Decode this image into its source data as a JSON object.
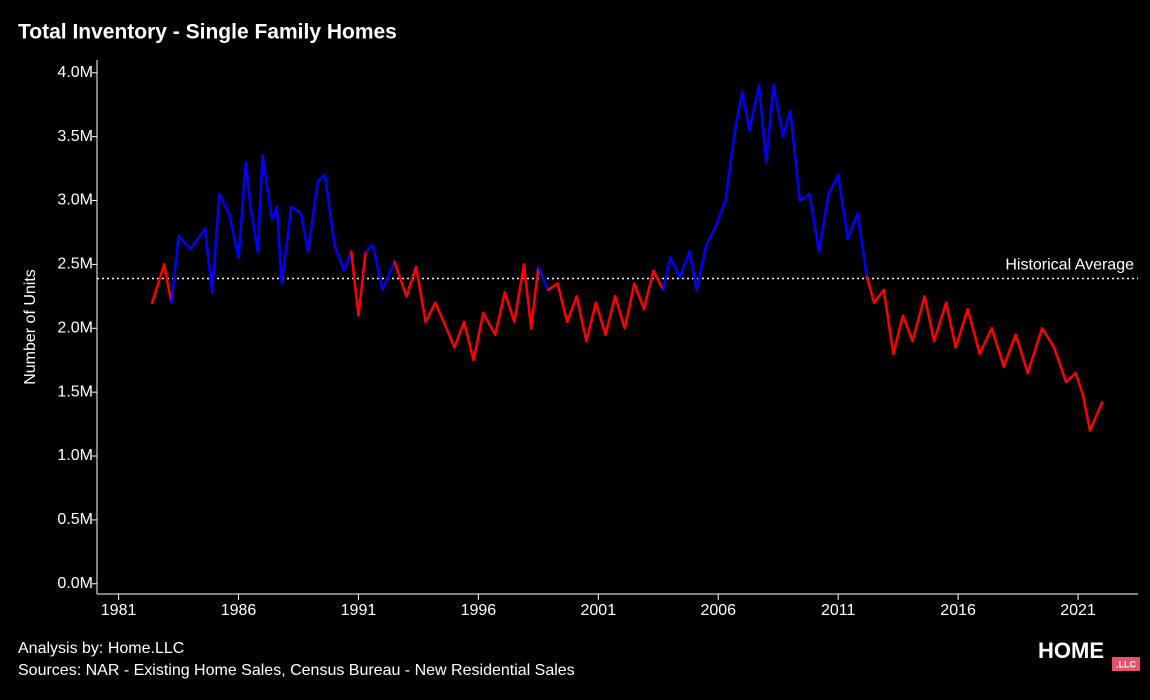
{
  "chart_data": {
    "type": "line",
    "title": "Total Inventory - Single Family Homes",
    "y_label": "Number of Units",
    "footer": [
      "Analysis by: Home.LLC",
      "Sources: NAR - Existing Home Sales, Census Bureau - New Residential Sales"
    ],
    "logo": {
      "main": "HOME",
      "badge": ".LLC"
    },
    "reference_line": {
      "label": "Historical Average",
      "value": 2390000
    },
    "above_color": "#0000ff",
    "below_color": "#ff0000",
    "xlim": [
      1980.1,
      2023.5
    ],
    "ylim": [
      -80000,
      4100000
    ],
    "xticks": [
      1981,
      1986,
      1991,
      1996,
      2001,
      2006,
      2011,
      2016,
      2021
    ],
    "yticks": [
      {
        "value": 0,
        "label": "0.0M"
      },
      {
        "value": 500000,
        "label": "0.5M"
      },
      {
        "value": 1000000,
        "label": "1.0M"
      },
      {
        "value": 1500000,
        "label": "1.5M"
      },
      {
        "value": 2000000,
        "label": "2.0M"
      },
      {
        "value": 2500000,
        "label": "2.5M"
      },
      {
        "value": 3000000,
        "label": "3.0M"
      },
      {
        "value": 3500000,
        "label": "3.5M"
      },
      {
        "value": 4000000,
        "label": "4.0M"
      }
    ],
    "x": [
      1982.4,
      1982.9,
      1983.2,
      1983.5,
      1984.0,
      1984.6,
      1984.9,
      1985.2,
      1985.6,
      1986.0,
      1986.3,
      1986.5,
      1986.8,
      1987.0,
      1987.4,
      1987.6,
      1987.8,
      1988.2,
      1988.6,
      1988.9,
      1989.3,
      1989.6,
      1990.0,
      1990.4,
      1990.7,
      1991.0,
      1991.3,
      1991.6,
      1992.0,
      1992.5,
      1993.0,
      1993.4,
      1993.8,
      1994.2,
      1994.6,
      1995.0,
      1995.4,
      1995.8,
      1996.2,
      1996.7,
      1997.1,
      1997.5,
      1997.9,
      1998.2,
      1998.5,
      1998.9,
      1999.3,
      1999.7,
      2000.1,
      2000.5,
      2000.9,
      2001.3,
      2001.7,
      2002.1,
      2002.5,
      2002.9,
      2003.3,
      2003.7,
      2004.0,
      2004.4,
      2004.8,
      2005.1,
      2005.5,
      2005.9,
      2006.3,
      2006.7,
      2007.0,
      2007.3,
      2007.7,
      2008.0,
      2008.3,
      2008.7,
      2009.0,
      2009.4,
      2009.8,
      2010.2,
      2010.6,
      2011.0,
      2011.4,
      2011.8,
      2012.2,
      2012.5,
      2012.9,
      2013.3,
      2013.7,
      2014.1,
      2014.6,
      2015.0,
      2015.5,
      2015.9,
      2016.4,
      2016.9,
      2017.4,
      2017.9,
      2018.4,
      2018.9,
      2019.5,
      2020.0,
      2020.5,
      2020.9,
      2021.2,
      2021.5,
      2022.0
    ],
    "values": [
      2200000,
      2500000,
      2200000,
      2720000,
      2620000,
      2780000,
      2280000,
      3050000,
      2900000,
      2550000,
      3300000,
      2950000,
      2600000,
      3350000,
      2850000,
      2950000,
      2350000,
      2950000,
      2900000,
      2600000,
      3150000,
      3200000,
      2650000,
      2450000,
      2600000,
      2100000,
      2600000,
      2650000,
      2300000,
      2520000,
      2250000,
      2480000,
      2050000,
      2200000,
      2030000,
      1850000,
      2050000,
      1750000,
      2120000,
      1950000,
      2280000,
      2050000,
      2500000,
      2000000,
      2480000,
      2300000,
      2350000,
      2050000,
      2250000,
      1900000,
      2200000,
      1950000,
      2250000,
      2000000,
      2350000,
      2150000,
      2450000,
      2300000,
      2550000,
      2400000,
      2600000,
      2300000,
      2650000,
      2800000,
      3000000,
      3550000,
      3850000,
      3550000,
      3900000,
      3300000,
      3900000,
      3500000,
      3700000,
      3000000,
      3050000,
      2600000,
      3050000,
      3200000,
      2700000,
      2900000,
      2400000,
      2200000,
      2300000,
      1800000,
      2100000,
      1900000,
      2250000,
      1900000,
      2200000,
      1850000,
      2150000,
      1800000,
      2000000,
      1700000,
      1950000,
      1650000,
      2000000,
      1850000,
      1580000,
      1650000,
      1480000,
      1200000,
      1420000
    ]
  }
}
